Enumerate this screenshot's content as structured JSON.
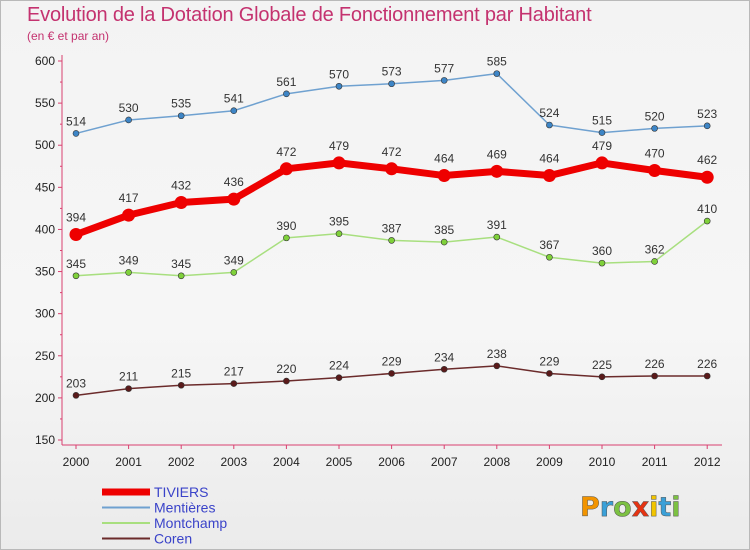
{
  "header": {
    "title": "Evolution de la Dotation Globale de Fonctionnement par Habitant",
    "subtitle": "(en € et par an)"
  },
  "logo": {
    "text": "Proxiti"
  },
  "chart_data": {
    "type": "line",
    "x": [
      "2000",
      "2001",
      "2002",
      "2003",
      "2004",
      "2005",
      "2006",
      "2007",
      "2008",
      "2009",
      "2010",
      "2011",
      "2012"
    ],
    "ylim": [
      150,
      600
    ],
    "yticks": [
      150,
      200,
      250,
      300,
      350,
      400,
      450,
      500,
      550,
      600
    ],
    "grid": false,
    "legend": "bottom-left",
    "series": [
      {
        "name": "Mentières",
        "color": "#6fa1d0",
        "marker": "#3d85c6",
        "values": [
          514,
          530,
          535,
          541,
          561,
          570,
          573,
          577,
          585,
          524,
          515,
          520,
          523
        ]
      },
      {
        "name": "TIVIERS",
        "color": "#ee0000",
        "marker": "#ee0000",
        "values": [
          394,
          417,
          432,
          436,
          472,
          479,
          472,
          464,
          469,
          464,
          479,
          470,
          462
        ]
      },
      {
        "name": "Montchamp",
        "color": "#a8df7f",
        "marker": "#7fd13a",
        "values": [
          345,
          349,
          345,
          349,
          390,
          395,
          387,
          385,
          391,
          367,
          360,
          362,
          410
        ]
      },
      {
        "name": "Coren",
        "color": "#6b2b2b",
        "marker": "#5a1a1a",
        "values": [
          203,
          211,
          215,
          217,
          220,
          224,
          229,
          234,
          238,
          229,
          225,
          226,
          226
        ]
      }
    ],
    "legend_order": [
      "TIVIERS",
      "Mentières",
      "Montchamp",
      "Coren"
    ]
  }
}
